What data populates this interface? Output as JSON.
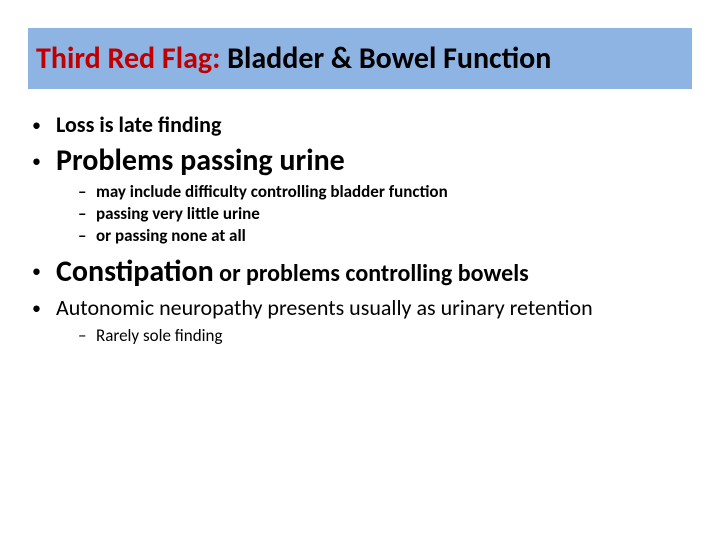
{
  "colors": {
    "title_bg": "#8eb4e3",
    "title_red": "#c00000",
    "text": "#000000",
    "background": "#ffffff"
  },
  "title": {
    "red_part": "Third Red Flag:",
    "black_part": "  Bladder & Bowel Function"
  },
  "bullets": {
    "b1": "Loss is late finding",
    "b2": "Problems passing urine",
    "b2_sub1": "may include difficulty controlling bladder function",
    "b2_sub2": "passing very little urine",
    "b2_sub3": "or passing none at all",
    "b3_lead": "Constipation",
    "b3_rest": " or problems controlling bowels",
    "b4": "Autonomic neuropathy presents usually as urinary retention",
    "b4_sub1": "Rarely sole finding"
  },
  "typography": {
    "title_fontsize": 30,
    "l1_small_fontsize": 22,
    "l1_large_fontsize": 30,
    "l1_normal_fontsize": 22,
    "l2_fontsize": 17,
    "font_family": "Calibri"
  }
}
